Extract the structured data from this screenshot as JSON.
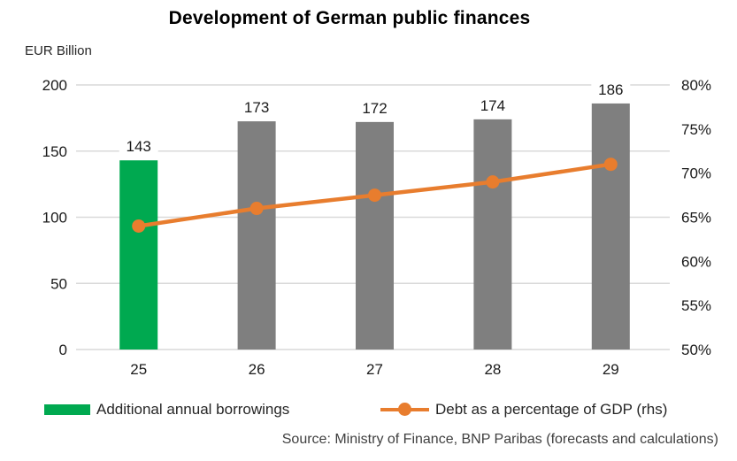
{
  "title": "Development of German public finances",
  "axis_unit_label": "EUR Billion",
  "source": "Source: Ministry of Finance, BNP Paribas (forecasts and calculations)",
  "legend": {
    "bars_label": "Additional annual borrowings",
    "line_label": "Debt as a percentage of GDP (rhs)"
  },
  "colors": {
    "green": "#00A950",
    "gray": "#7F7F7F",
    "orange": "#E87D2E",
    "gridline": "#D9D9D9",
    "text": "#1A1A1A"
  },
  "chart_data": {
    "type": "bar",
    "subtype": "bar+line dual axis",
    "title": "Development of German public finances",
    "categories": [
      "25",
      "26",
      "27",
      "28",
      "29"
    ],
    "series": [
      {
        "name": "Additional annual borrowings",
        "type": "bar",
        "axis": "left",
        "values": [
          143,
          172.5,
          172,
          174,
          186
        ],
        "data_labels": [
          "143",
          "173",
          "172",
          "174",
          "186"
        ],
        "bar_colors": [
          "#00A950",
          "#7F7F7F",
          "#7F7F7F",
          "#7F7F7F",
          "#7F7F7F"
        ]
      },
      {
        "name": "Debt as a percentage of GDP (rhs)",
        "type": "line",
        "axis": "right",
        "values": [
          64,
          66,
          67.5,
          69,
          71
        ],
        "color": "#E87D2E",
        "marker": "circle"
      }
    ],
    "left_axis": {
      "label": "EUR Billion",
      "range": [
        0,
        200
      ],
      "ticks": [
        200,
        150,
        100,
        50,
        0
      ]
    },
    "right_axis": {
      "range": [
        50,
        80
      ],
      "ticks": [
        "80%",
        "75%",
        "70%",
        "65%",
        "60%",
        "55%",
        "50%"
      ]
    },
    "grid": true,
    "legend_position": "bottom"
  }
}
